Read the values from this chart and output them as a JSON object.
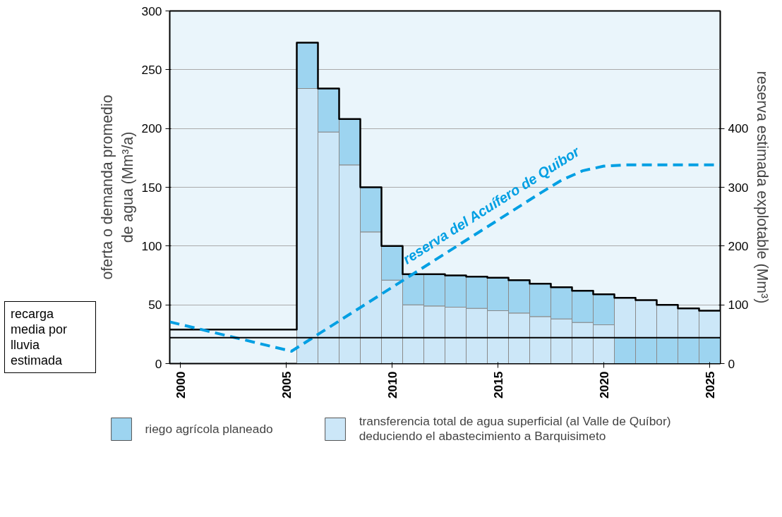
{
  "chart_data": {
    "type": "bar",
    "stacked": true,
    "ylabel": "oferta o demanda promedio\nde agua (Mm³/a)",
    "y2label": "reserva estimada explotable (Mm³)",
    "xlim": [
      1999.5,
      2025.5
    ],
    "xticks": [
      2000,
      2005,
      2010,
      2015,
      2020,
      2025
    ],
    "ylim": [
      0,
      300
    ],
    "yticks": [
      0,
      50,
      100,
      150,
      200,
      250,
      300
    ],
    "y2lim": [
      0,
      600
    ],
    "y2ticks": [
      0,
      100,
      200,
      300,
      400
    ],
    "grid": "y",
    "legend": "bottom",
    "x": [
      2006,
      2007,
      2008,
      2009,
      2010,
      2011,
      2012,
      2013,
      2014,
      2015,
      2016,
      2017,
      2018,
      2019,
      2020,
      2021,
      2022,
      2023,
      2024,
      2025
    ],
    "series": [
      {
        "color": "#9dd4f0",
        "values": [
          null,
          null,
          null,
          null,
          null,
          null,
          null,
          null,
          null,
          null,
          null,
          null,
          null,
          null,
          null,
          22,
          22,
          22,
          22,
          22
        ]
      },
      {
        "name": "transferencia total de agua superficial (al Valle de Quíbor)\ndeduciendo el abastecimiento a Barquisimeto",
        "color": "#cce7f8",
        "values": [
          234,
          197,
          169,
          112,
          71,
          50,
          49,
          48,
          47,
          45,
          43,
          40,
          38,
          35,
          33,
          34,
          32,
          28,
          25,
          23
        ]
      },
      {
        "name": "riego agrícola planeado",
        "color": "#9dd4f0",
        "values": [
          39,
          37,
          39,
          38,
          29,
          26,
          27,
          27,
          27,
          28,
          28,
          28,
          27,
          27,
          26,
          null,
          null,
          null,
          null,
          null
        ]
      },
      {
        "type": "step",
        "color": "#000000",
        "x": [
          1999.5,
          2000.5,
          2001.5,
          2002.5,
          2003.5,
          2004.5,
          2005.5,
          2006.5,
          2007.5,
          2008.5,
          2009.5,
          2010.5,
          2011.5,
          2012.5,
          2013.5,
          2014.5,
          2015.5,
          2016.5,
          2017.5,
          2018.5,
          2019.5,
          2020.5,
          2021.5,
          2022.5,
          2023.5,
          2024.5,
          2025.5
        ],
        "values": [
          29,
          29,
          29,
          29,
          29,
          29,
          273,
          234,
          208,
          150,
          100,
          76,
          76,
          75,
          74,
          73,
          71,
          68,
          65,
          62,
          59,
          56,
          54,
          50,
          47,
          45,
          45
        ]
      },
      {
        "type": "line",
        "axis": "y2",
        "name": "reserva del Acuífero de Quibor",
        "color": "#009fe3",
        "line_style": "dashed",
        "x": [
          1999.5,
          2005.25,
          2017,
          2018,
          2019,
          2020,
          2021,
          2025.5
        ],
        "values": [
          71,
          21,
          290,
          312,
          328,
          336,
          338,
          338
        ]
      }
    ],
    "ref_lines": [
      {
        "axis": "y",
        "value": 22,
        "label": "recarga\nmedia por\nlluvia\nestimada",
        "color": "#000000"
      }
    ]
  }
}
